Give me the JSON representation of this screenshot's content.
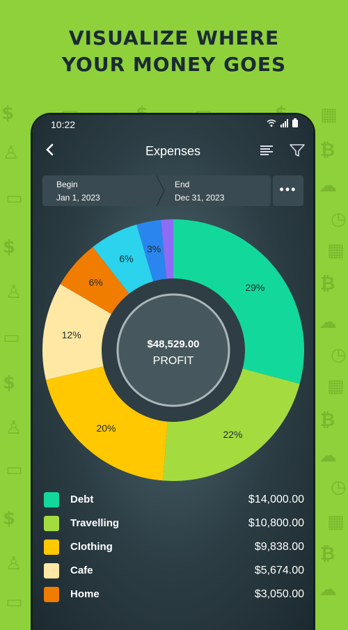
{
  "headline": {
    "line1": "VISUALIZE WHERE",
    "line2": "YOUR MONEY GOES"
  },
  "status": {
    "time": "10:22"
  },
  "toolbar": {
    "title": "Expenses"
  },
  "range": {
    "begin_label": "Begin",
    "begin_value": "Jan 1, 2023",
    "end_label": "End",
    "end_value": "Dec 31, 2023"
  },
  "center": {
    "amount": "$48,529.00",
    "label": "PROFIT"
  },
  "chart_data": {
    "type": "pie",
    "slices": [
      {
        "name": "Debt",
        "value": 29,
        "label": "29%",
        "color": "#12d99b"
      },
      {
        "name": "Travelling",
        "value": 22,
        "label": "22%",
        "color": "#a4dc3f"
      },
      {
        "name": "Clothing",
        "value": 20,
        "label": "20%",
        "color": "#ffc800"
      },
      {
        "name": "Cafe",
        "value": 12,
        "label": "12%",
        "color": "#ffe8a4"
      },
      {
        "name": "Home",
        "value": 6,
        "label": "6%",
        "color": "#f07c00"
      },
      {
        "name": "",
        "value": 6,
        "label": "6%",
        "color": "#2bd3ec"
      },
      {
        "name": "",
        "value": 3,
        "label": "3%",
        "color": "#2a86ee"
      },
      {
        "name": "",
        "value": 1.5,
        "label": "",
        "color": "#8f6cf6"
      }
    ]
  },
  "legend": [
    {
      "name": "Debt",
      "amount": "$14,000.00",
      "color": "#12d99b"
    },
    {
      "name": "Travelling",
      "amount": "$10,800.00",
      "color": "#a4dc3f"
    },
    {
      "name": "Clothing",
      "amount": "$9,838.00",
      "color": "#ffc800"
    },
    {
      "name": "Cafe",
      "amount": "$5,674.00",
      "color": "#ffe8a4"
    },
    {
      "name": "Home",
      "amount": "$3,050.00",
      "color": "#f07c00"
    }
  ],
  "colors": {
    "background": "#8ed13a",
    "panel": "#3a4a52"
  },
  "icons": [
    "back-arrow-icon",
    "sort-icon",
    "filter-icon",
    "more-icon",
    "wifi-icon",
    "signal-icon",
    "battery-icon"
  ]
}
